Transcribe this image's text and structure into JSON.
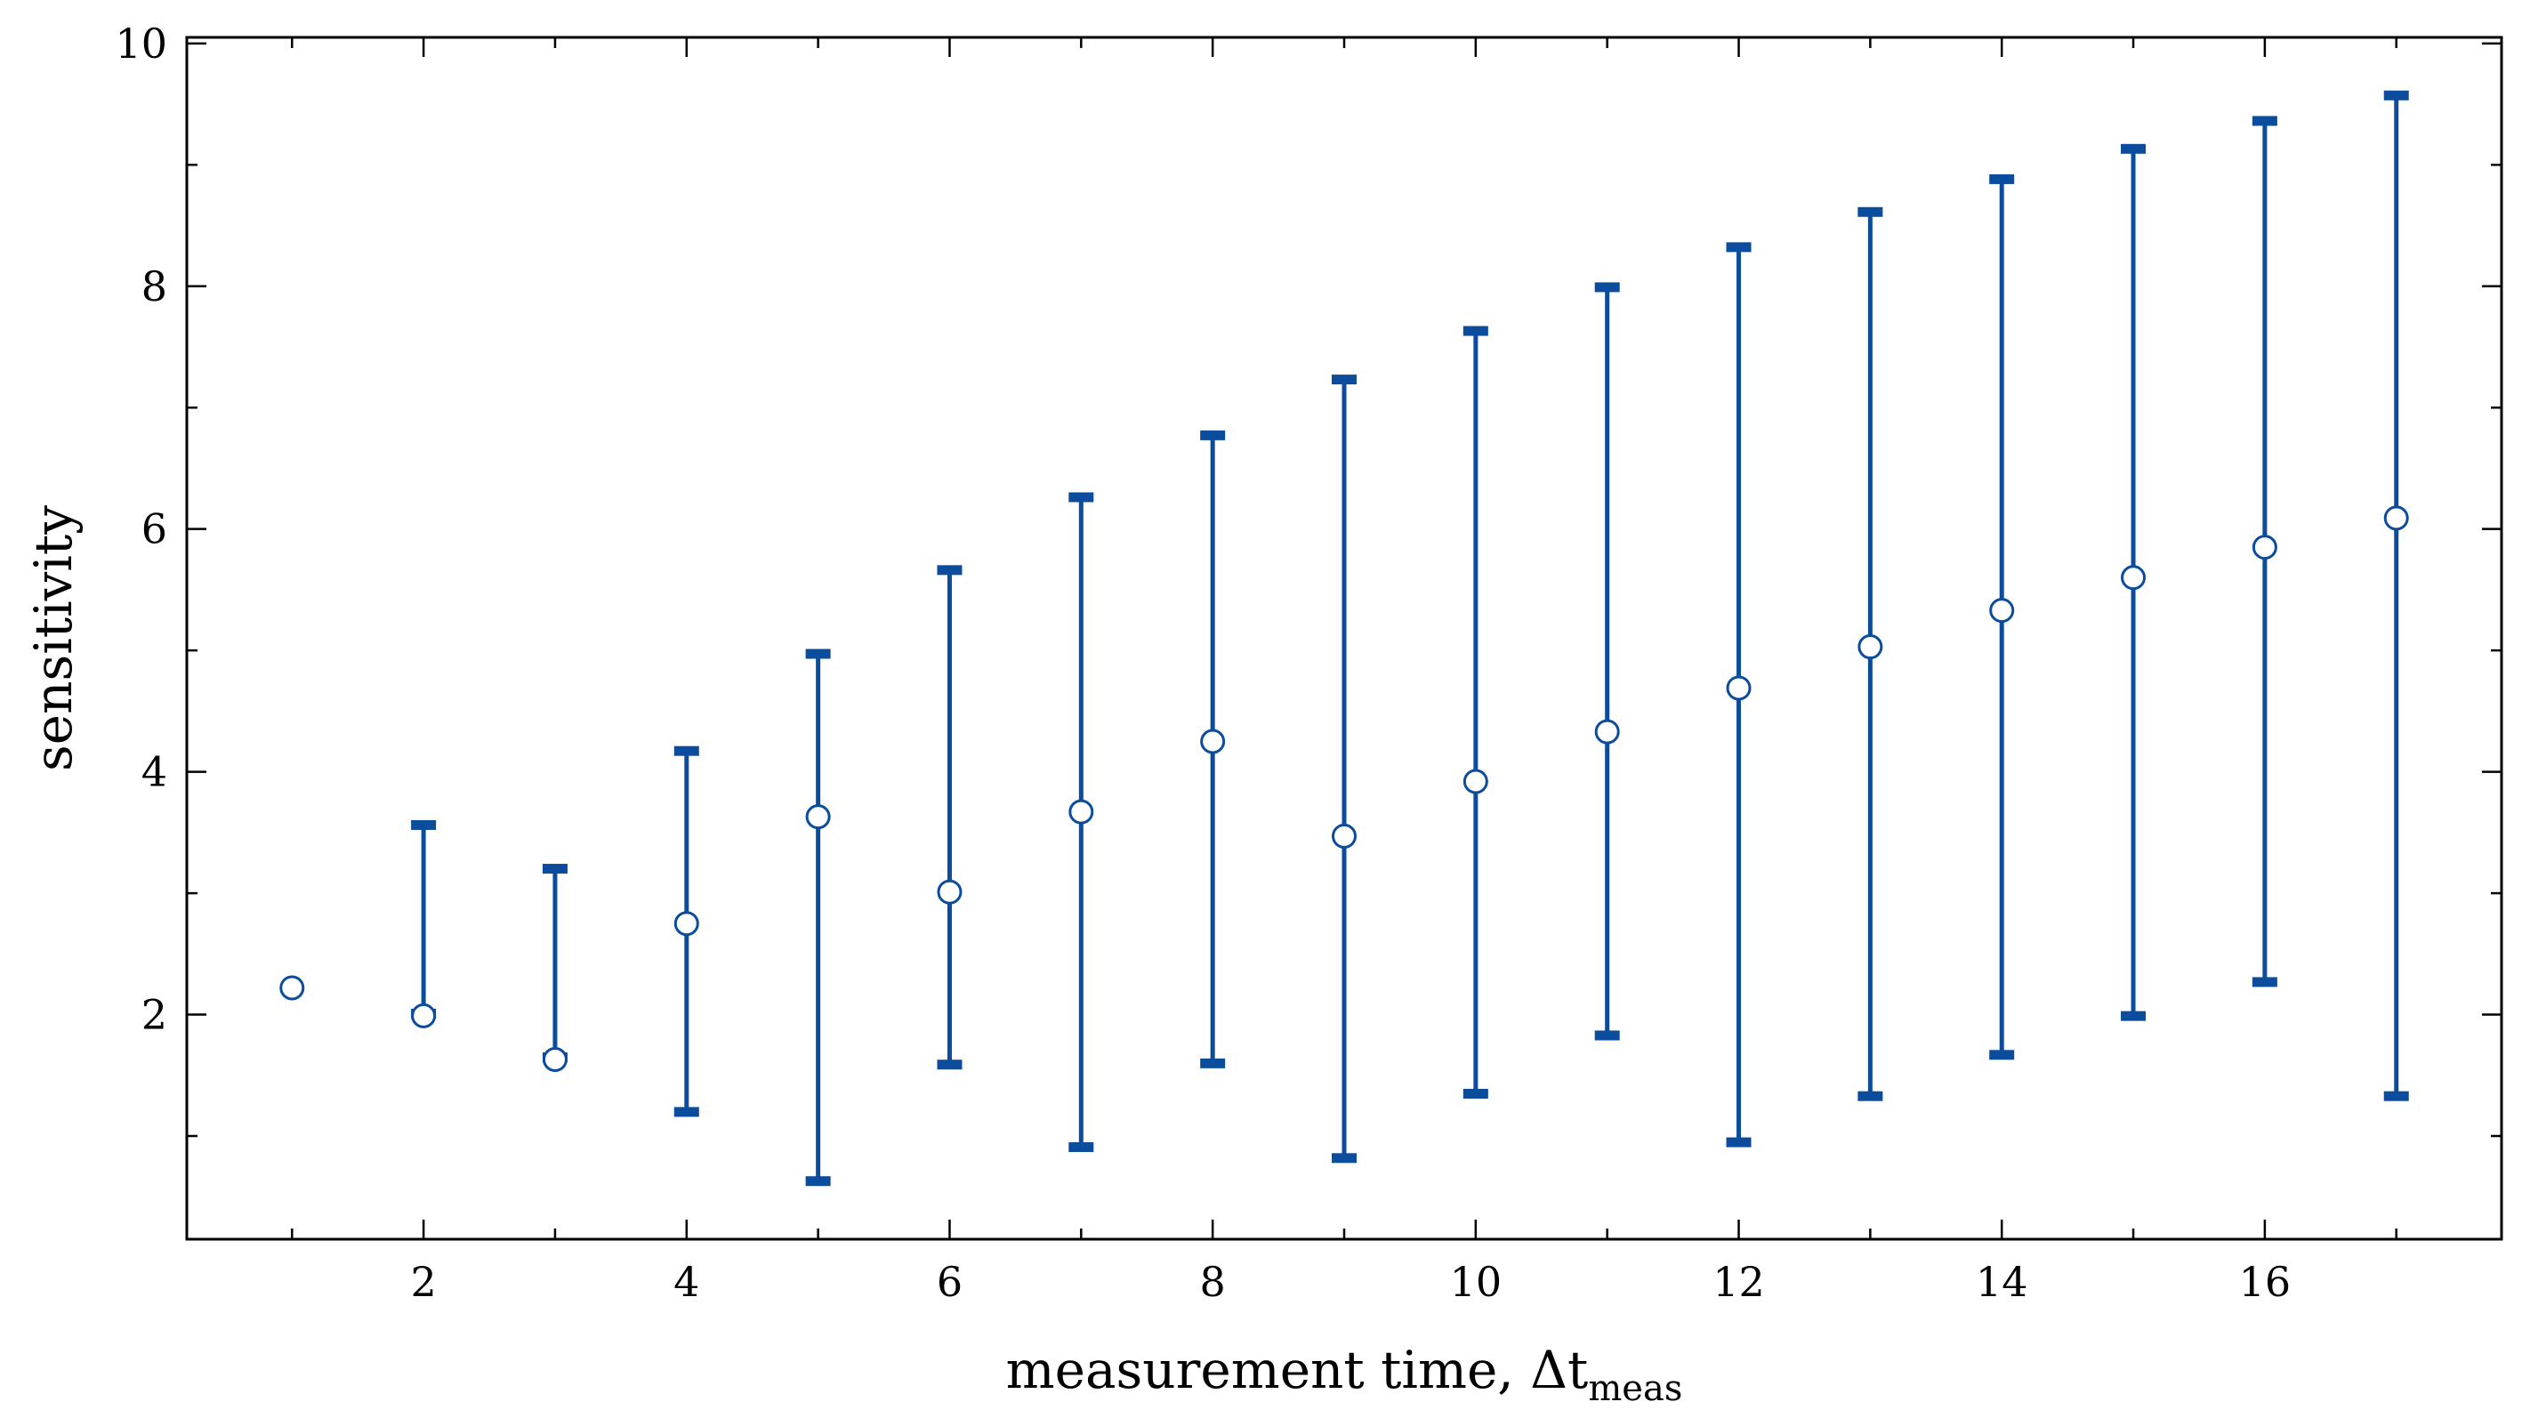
{
  "chart_data": {
    "type": "scatter",
    "xlabel": "measurement time, Δt",
    "xlabel_subscript": "meas",
    "ylabel": "sensitivity",
    "xlim": [
      0.2,
      17.8
    ],
    "ylim": [
      0.15,
      10.05
    ],
    "x_ticks": [
      2,
      4,
      6,
      8,
      10,
      12,
      14,
      16
    ],
    "y_ticks": [
      2,
      4,
      6,
      8,
      10
    ],
    "x_minor_ticks": [
      1,
      3,
      5,
      7,
      9,
      11,
      13,
      15,
      17
    ],
    "y_minor_ticks": [
      1,
      3,
      5,
      7,
      9
    ],
    "grid": false,
    "color": "#0C4C9C",
    "series": [
      {
        "points": [
          {
            "x": 1,
            "y": 2.22,
            "lo": null,
            "hi": null
          },
          {
            "x": 2,
            "y": 1.99,
            "lo": 1.99,
            "hi": 3.58
          },
          {
            "x": 3,
            "y": 1.63,
            "lo": 1.63,
            "hi": 3.22
          },
          {
            "x": 4,
            "y": 2.75,
            "lo": 1.18,
            "hi": 4.19
          },
          {
            "x": 5,
            "y": 3.63,
            "lo": 0.61,
            "hi": 4.99
          },
          {
            "x": 6,
            "y": 3.01,
            "lo": 1.57,
            "hi": 5.68
          },
          {
            "x": 7,
            "y": 3.67,
            "lo": 0.89,
            "hi": 6.28
          },
          {
            "x": 8,
            "y": 4.25,
            "lo": 1.58,
            "hi": 6.79
          },
          {
            "x": 9,
            "y": 3.47,
            "lo": 0.8,
            "hi": 7.25
          },
          {
            "x": 10,
            "y": 3.92,
            "lo": 1.33,
            "hi": 7.65
          },
          {
            "x": 11,
            "y": 4.33,
            "lo": 1.81,
            "hi": 8.01
          },
          {
            "x": 12,
            "y": 4.69,
            "lo": 0.93,
            "hi": 8.34
          },
          {
            "x": 13,
            "y": 5.03,
            "lo": 1.31,
            "hi": 8.63
          },
          {
            "x": 14,
            "y": 5.33,
            "lo": 1.65,
            "hi": 8.9
          },
          {
            "x": 15,
            "y": 5.6,
            "lo": 1.97,
            "hi": 9.15
          },
          {
            "x": 16,
            "y": 5.85,
            "lo": 2.25,
            "hi": 9.38
          },
          {
            "x": 17,
            "y": 6.09,
            "lo": 1.31,
            "hi": 9.59
          }
        ]
      }
    ]
  }
}
